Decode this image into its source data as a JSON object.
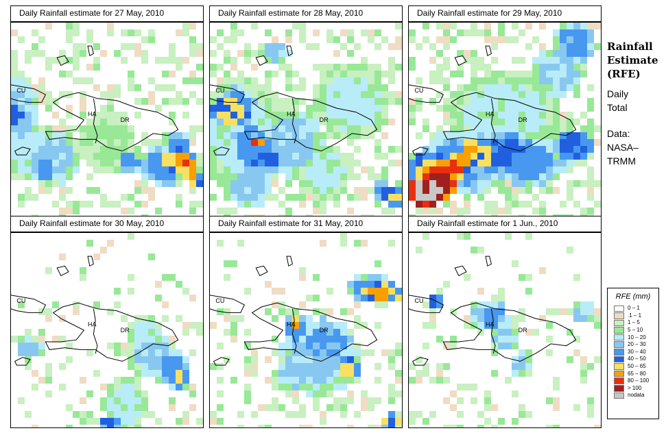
{
  "panels": [
    {
      "title": "Daily Rainfall estimate for  27 May, 2010",
      "blobs": [
        [
          0.02,
          0.46,
          0.06,
          0.06,
          7
        ],
        [
          0.04,
          0.46,
          0.12,
          0.16,
          5
        ],
        [
          0.86,
          0.7,
          0.1,
          0.07,
          8
        ],
        [
          0.8,
          0.72,
          0.14,
          0.1,
          6
        ],
        [
          0.22,
          0.68,
          0.14,
          0.14,
          5
        ],
        [
          0.06,
          0.66,
          0.16,
          0.14,
          4
        ],
        [
          0.5,
          0.6,
          0.16,
          0.16,
          3
        ],
        [
          0.95,
          0.78,
          0.04,
          0.06,
          9
        ],
        [
          0.9,
          0.7,
          0.05,
          0.05,
          10
        ],
        [
          0.18,
          0.74,
          0.06,
          0.06,
          6
        ],
        [
          0.04,
          0.35,
          0.08,
          0.1,
          4
        ],
        [
          0.87,
          0.62,
          0.07,
          0.07,
          6
        ],
        [
          0.62,
          0.7,
          0.06,
          0.06,
          6
        ]
      ]
    },
    {
      "title": "Daily Rainfall estimate for  28 May, 2010",
      "blobs": [
        [
          0.11,
          0.45,
          0.1,
          0.08,
          8
        ],
        [
          0.14,
          0.42,
          0.1,
          0.1,
          6
        ],
        [
          0.22,
          0.62,
          0.12,
          0.14,
          6
        ],
        [
          0.24,
          0.6,
          0.03,
          0.03,
          10
        ],
        [
          0.28,
          0.68,
          0.1,
          0.08,
          7
        ],
        [
          0.42,
          0.6,
          0.18,
          0.18,
          5
        ],
        [
          0.16,
          0.55,
          0.22,
          0.28,
          4
        ],
        [
          0.74,
          0.4,
          0.2,
          0.2,
          4
        ],
        [
          0.96,
          0.88,
          0.04,
          0.05,
          8
        ],
        [
          0.9,
          0.85,
          0.05,
          0.05,
          7
        ],
        [
          0.2,
          0.82,
          0.12,
          0.12,
          5
        ],
        [
          0.6,
          0.75,
          0.14,
          0.14,
          4
        ],
        [
          0.34,
          0.15,
          0.08,
          0.06,
          5
        ]
      ]
    },
    {
      "title": "Daily Rainfall estimate for  29 May, 2010",
      "blobs": [
        [
          0.1,
          0.85,
          0.1,
          0.08,
          12
        ],
        [
          0.16,
          0.8,
          0.1,
          0.1,
          11
        ],
        [
          0.18,
          0.76,
          0.06,
          0.06,
          10
        ],
        [
          0.26,
          0.72,
          0.06,
          0.06,
          10
        ],
        [
          0.12,
          0.76,
          0.12,
          0.12,
          8
        ],
        [
          0.32,
          0.66,
          0.08,
          0.06,
          9
        ],
        [
          0.38,
          0.66,
          0.08,
          0.08,
          8
        ],
        [
          0.5,
          0.66,
          0.16,
          0.1,
          7
        ],
        [
          0.3,
          0.7,
          0.26,
          0.16,
          6
        ],
        [
          0.62,
          0.7,
          0.22,
          0.12,
          6
        ],
        [
          0.5,
          0.46,
          0.3,
          0.22,
          4
        ],
        [
          0.86,
          0.1,
          0.12,
          0.1,
          6
        ],
        [
          0.78,
          0.25,
          0.14,
          0.12,
          5
        ],
        [
          0.85,
          0.62,
          0.1,
          0.08,
          7
        ]
      ]
    },
    {
      "title": "Daily Rainfall estimate for  30 May, 2010",
      "blobs": [
        [
          0.74,
          0.62,
          0.14,
          0.12,
          5
        ],
        [
          0.84,
          0.68,
          0.1,
          0.1,
          6
        ],
        [
          0.88,
          0.72,
          0.04,
          0.06,
          8
        ],
        [
          0.6,
          0.86,
          0.12,
          0.14,
          4
        ],
        [
          0.52,
          0.96,
          0.06,
          0.04,
          7
        ],
        [
          0.1,
          0.58,
          0.08,
          0.06,
          5
        ],
        [
          0.7,
          0.5,
          0.1,
          0.08,
          4
        ]
      ]
    },
    {
      "title": "Daily Rainfall estimate for  31 May, 2010",
      "blobs": [
        [
          0.44,
          0.46,
          0.04,
          0.03,
          9
        ],
        [
          0.46,
          0.48,
          0.08,
          0.08,
          6
        ],
        [
          0.6,
          0.55,
          0.14,
          0.12,
          6
        ],
        [
          0.72,
          0.68,
          0.06,
          0.06,
          8
        ],
        [
          0.56,
          0.64,
          0.22,
          0.18,
          5
        ],
        [
          0.9,
          0.3,
          0.1,
          0.05,
          9
        ],
        [
          0.84,
          0.28,
          0.12,
          0.08,
          6
        ],
        [
          0.44,
          0.72,
          0.1,
          0.08,
          5
        ],
        [
          0.94,
          0.95,
          0.06,
          0.04,
          8
        ]
      ]
    },
    {
      "title": "Daily Rainfall estimate for  1 Jun., 2010",
      "blobs": [
        [
          0.14,
          0.34,
          0.04,
          0.04,
          7
        ],
        [
          0.42,
          0.42,
          0.1,
          0.08,
          6
        ],
        [
          0.5,
          0.52,
          0.08,
          0.08,
          5
        ],
        [
          0.58,
          0.66,
          0.06,
          0.06,
          5
        ],
        [
          0.9,
          0.4,
          0.06,
          0.06,
          5
        ]
      ]
    }
  ],
  "labels": {
    "cu": "CU",
    "ha": "HA",
    "dr": "DR"
  },
  "side": {
    "title1": "Rainfall",
    "title2": "Estimate",
    "title3": "(RFE)",
    "line1": "Daily",
    "line2": "Total",
    "line3": "Data:",
    "line4": "NASA–",
    "line5": "TRMM"
  },
  "legend": {
    "title": "RFE (mm)",
    "items": [
      {
        "label": "0 – 1",
        "color": "#ffffff"
      },
      {
        "label": ".1 – 1",
        "color": "#f0dcc2"
      },
      {
        "label": "1 – 5",
        "color": "#c8f0c0"
      },
      {
        "label": "5 – 10",
        "color": "#98e898"
      },
      {
        "label": "10 – 20",
        "color": "#b8ecf8"
      },
      {
        "label": "20 – 30",
        "color": "#88c8f0"
      },
      {
        "label": "30 – 40",
        "color": "#4898f0"
      },
      {
        "label": "40 – 50",
        "color": "#2060e0"
      },
      {
        "label": "50 – 65",
        "color": "#f8e060"
      },
      {
        "label": "65 – 80",
        "color": "#f8a000"
      },
      {
        "label": "80 – 100",
        "color": "#e83010"
      },
      {
        "label": "> 100",
        "color": "#a02020"
      },
      {
        "label": "nodata",
        "color": "#c8c8c8"
      }
    ]
  }
}
